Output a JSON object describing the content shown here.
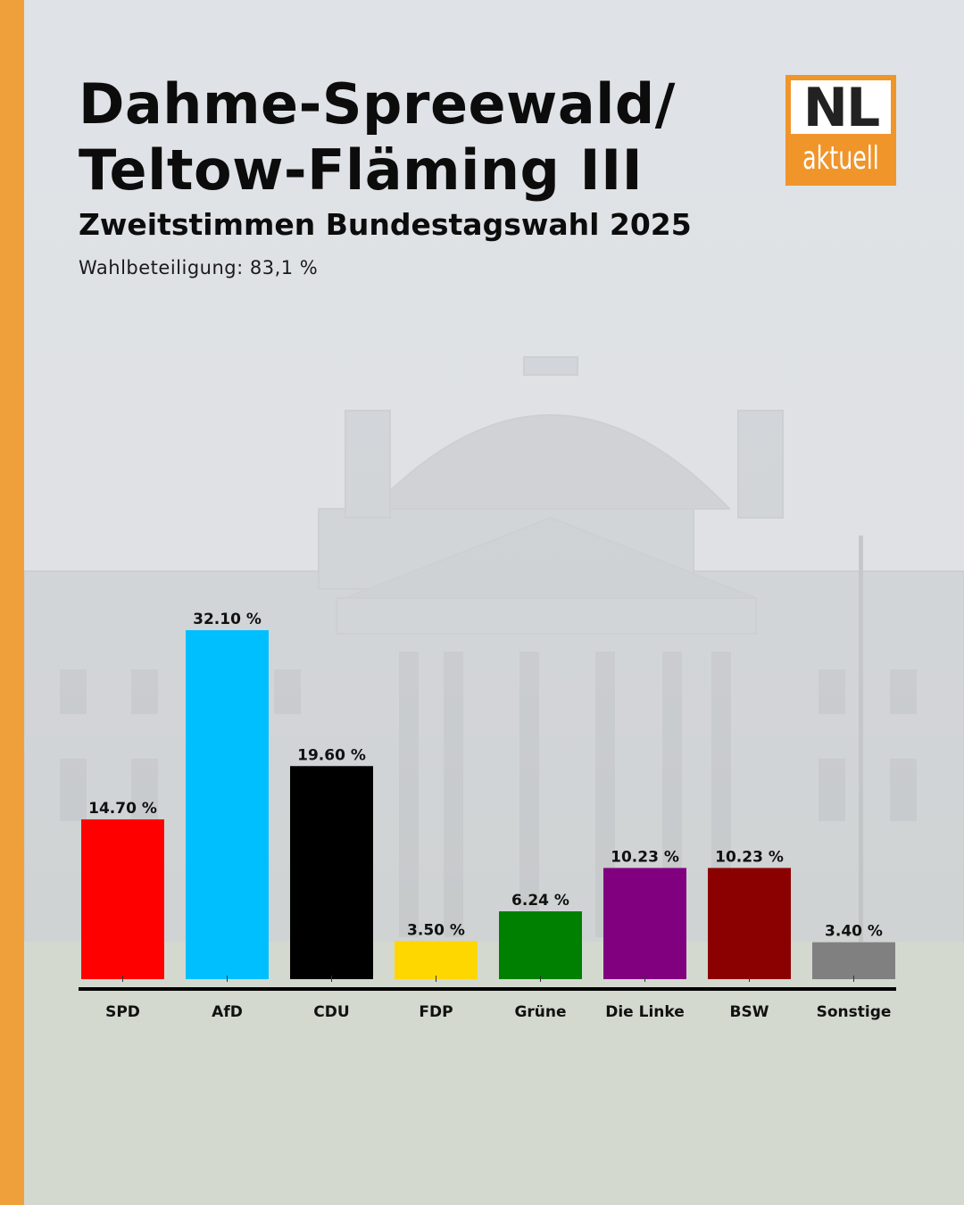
{
  "header": {
    "title_line1": "Dahme-Spreewald/",
    "title_line2": "Teltow-Fläming III",
    "subtitle": "Zweitstimmen Bundestagswahl 2025",
    "turnout": "Wahlbeteiligung: 83,1 %"
  },
  "logo": {
    "top_text": "NL",
    "bottom_text": "aktuell",
    "color": "#f0952a"
  },
  "colors": {
    "accent_bar": "#f0a03a"
  },
  "chart_data": {
    "type": "bar",
    "categories": [
      "SPD",
      "AfD",
      "CDU",
      "FDP",
      "Grüne",
      "Die Linke",
      "BSW",
      "Sonstige"
    ],
    "values": [
      14.7,
      32.1,
      19.6,
      3.5,
      6.24,
      10.23,
      10.23,
      3.4
    ],
    "value_labels": [
      "14.70 %",
      "32.10 %",
      "19.60 %",
      "3.50 %",
      "6.24 %",
      "10.23 %",
      "10.23 %",
      "3.40 %"
    ],
    "colors": [
      "#ff0000",
      "#00bfff",
      "#000000",
      "#ffd700",
      "#008000",
      "#800080",
      "#8b0000",
      "#808080"
    ],
    "ylim": [
      0,
      35
    ],
    "grid": false,
    "legend": "none"
  }
}
